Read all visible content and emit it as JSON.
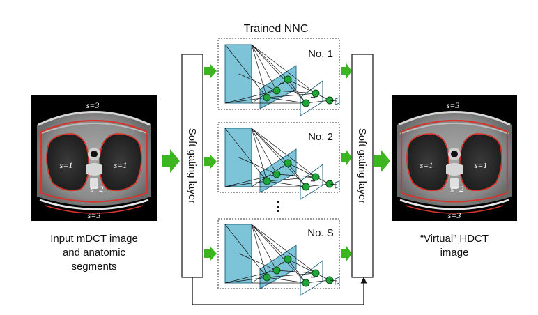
{
  "title": "Trained NNC",
  "input_caption": [
    "Input mDCT image",
    "and anatomic",
    "segments"
  ],
  "output_caption": [
    "“Virtual” HDCT",
    "image"
  ],
  "gating_left": "Soft gating layer",
  "gating_right": "Soft gating layer",
  "segments": {
    "s1_left": "s=1",
    "s1_right": "s=1",
    "s2": "s=2",
    "s3_top": "s=3",
    "s3_bottom": "s=3"
  },
  "networks": [
    {
      "label": "No. 1"
    },
    {
      "label": "No. 2"
    },
    {
      "label": "No. S"
    }
  ],
  "ellipsis": "•••",
  "node_ellipsis": "•••",
  "colors": {
    "arrow_green": "#3cb521",
    "panel_blue": "#7ec4d8",
    "node_green": "#1fa63a",
    "outline_red": "#d4352c",
    "ct_background": "#000000"
  }
}
